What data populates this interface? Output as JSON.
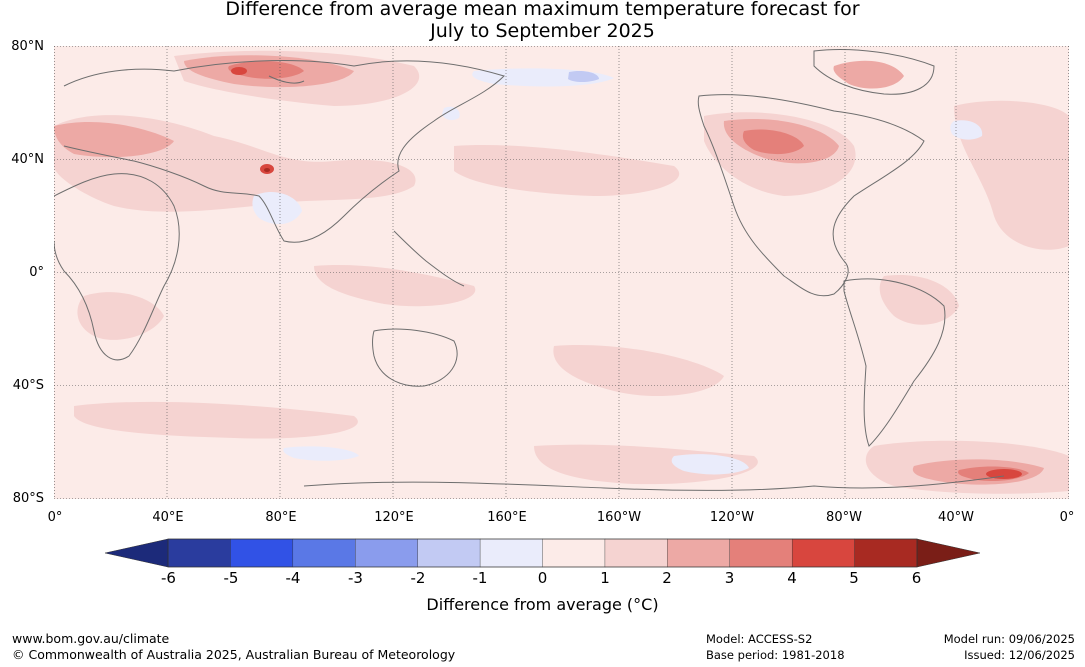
{
  "title": {
    "line1": "Difference from average mean maximum temperature forecast for",
    "line2": "July to September 2025"
  },
  "lat_labels": [
    "80°N",
    "40°N",
    "0°",
    "40°S",
    "80°S"
  ],
  "lon_labels": [
    "0°",
    "40°E",
    "80°E",
    "120°E",
    "160°E",
    "160°W",
    "120°W",
    "80°W",
    "40°W",
    "0°"
  ],
  "colorbar": {
    "ticks": [
      "-6",
      "-5",
      "-4",
      "-3",
      "-2",
      "-1",
      "0",
      "1",
      "2",
      "3",
      "4",
      "5",
      "6"
    ],
    "colors": [
      "#2a3c9e",
      "#3152e6",
      "#5a78e6",
      "#8a9ced",
      "#c2caf3",
      "#eaecfb",
      "#fcebe8",
      "#f5d3d1",
      "#eda9a5",
      "#e4807a",
      "#d8463e",
      "#a82a22"
    ],
    "under_color": "#1c2a7a",
    "over_color": "#7a1e17",
    "label": "Difference from average (°C)"
  },
  "footer": {
    "website": "www.bom.gov.au/climate",
    "copyright": "© Commonwealth of Australia 2025, Australian Bureau of Meteorology",
    "model": "Model: ACCESS-S2",
    "base_period": "Base period: 1981-2018",
    "model_run": "Model run: 09/06/2025",
    "issued": "Issued: 12/06/2025"
  },
  "map": {
    "background_color": "#fcebe8",
    "coast_color": "#6e6e6e",
    "grid": true
  }
}
